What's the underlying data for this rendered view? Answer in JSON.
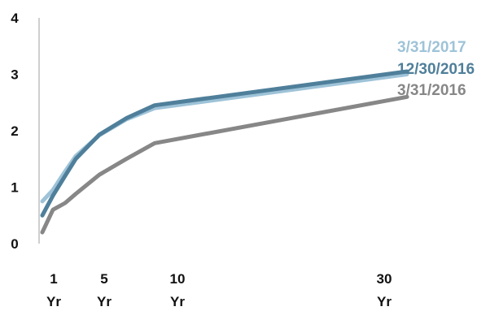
{
  "chart_data": {
    "type": "line",
    "title": "",
    "xlabel": "",
    "ylabel": "",
    "x_ticks": [
      {
        "x": 1,
        "line1": "1",
        "line2": "Yr"
      },
      {
        "x": 5,
        "line1": "5",
        "line2": "Yr"
      },
      {
        "x": 10,
        "line1": "10",
        "line2": "Yr"
      },
      {
        "x": 30,
        "line1": "30",
        "line2": "Yr"
      }
    ],
    "y_ticks": [
      0,
      1,
      2,
      3,
      4
    ],
    "ylim": [
      0,
      4
    ],
    "xlim": [
      0.5,
      30
    ],
    "grid": false,
    "legend_position": "right",
    "series": [
      {
        "name": "3/31/2017",
        "color": "#9ec3d8",
        "points": [
          [
            0.5,
            0.75
          ],
          [
            1,
            0.95
          ],
          [
            2,
            1.28
          ],
          [
            3,
            1.55
          ],
          [
            5,
            1.92
          ],
          [
            7,
            2.2
          ],
          [
            10,
            2.4
          ],
          [
            30,
            3.0
          ]
        ]
      },
      {
        "name": "12/30/2016",
        "color": "#4f7f9a",
        "points": [
          [
            0.5,
            0.5
          ],
          [
            1,
            0.85
          ],
          [
            2,
            1.2
          ],
          [
            3,
            1.5
          ],
          [
            5,
            1.93
          ],
          [
            7,
            2.22
          ],
          [
            10,
            2.45
          ],
          [
            30,
            3.05
          ]
        ]
      },
      {
        "name": "3/31/2016",
        "color": "#878787",
        "points": [
          [
            0.5,
            0.2
          ],
          [
            1,
            0.6
          ],
          [
            2,
            0.72
          ],
          [
            3,
            0.88
          ],
          [
            5,
            1.22
          ],
          [
            7,
            1.5
          ],
          [
            10,
            1.78
          ],
          [
            30,
            2.6
          ]
        ]
      }
    ]
  }
}
